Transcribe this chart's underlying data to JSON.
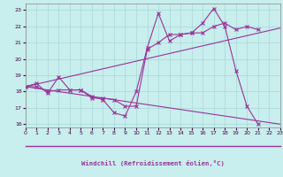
{
  "background_color": "#c8eeed",
  "grid_color": "#a8d8d8",
  "line_color": "#993399",
  "xlabel": "Windchill (Refroidissement éolien,°C)",
  "xlim": [
    0,
    23
  ],
  "ylim": [
    15.8,
    23.4
  ],
  "xticks": [
    0,
    1,
    2,
    3,
    4,
    5,
    6,
    7,
    8,
    9,
    10,
    11,
    12,
    13,
    14,
    15,
    16,
    17,
    18,
    19,
    20,
    21,
    22,
    23
  ],
  "yticks": [
    16,
    17,
    18,
    19,
    20,
    21,
    22,
    23
  ],
  "line1_x": [
    0,
    1,
    2,
    3,
    4,
    5,
    6,
    7,
    8,
    9,
    10,
    11,
    12,
    13,
    14,
    15,
    16,
    17,
    18,
    19,
    20,
    21
  ],
  "line1_y": [
    18.3,
    18.5,
    17.9,
    18.9,
    18.1,
    18.1,
    17.7,
    17.5,
    16.7,
    16.5,
    18.0,
    20.7,
    22.8,
    21.1,
    21.5,
    21.6,
    22.2,
    23.1,
    22.0,
    19.3,
    17.1,
    16.0
  ],
  "line2_x": [
    0,
    1,
    2,
    3,
    4,
    5,
    6,
    7,
    8,
    9,
    10,
    11,
    12,
    13,
    14,
    15,
    16,
    17,
    18,
    19,
    20,
    21
  ],
  "line2_y": [
    18.3,
    18.3,
    18.0,
    18.1,
    18.1,
    18.1,
    17.6,
    17.6,
    17.5,
    17.1,
    17.1,
    20.6,
    21.0,
    21.5,
    21.5,
    21.6,
    21.6,
    22.0,
    22.2,
    21.8,
    22.0,
    21.8
  ],
  "line3_x": [
    0,
    23
  ],
  "line3_y": [
    18.3,
    21.9
  ],
  "line4_x": [
    0,
    23
  ],
  "line4_y": [
    18.3,
    16.0
  ]
}
